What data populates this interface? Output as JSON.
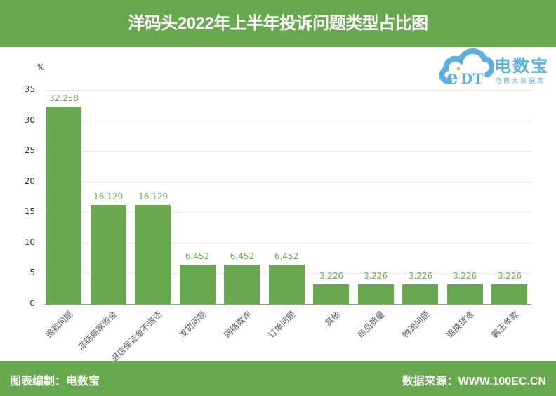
{
  "header": {
    "title": "洋码头2022年上半年投诉问题类型占比图"
  },
  "logo": {
    "badge": "eDT",
    "name": "电数宝",
    "subtitle": "电商大数据库"
  },
  "footer": {
    "left": "图表编制：电数宝",
    "right": "数据来源：WWW.100EC.CN"
  },
  "colors": {
    "bar": "#68a84f",
    "header": "#68a84f",
    "logo": "#5aaee0"
  },
  "chart_data": {
    "type": "bar",
    "title": "洋码头2022年上半年投诉问题类型占比图",
    "xlabel": "",
    "ylabel": "%",
    "ylim": [
      0,
      35
    ],
    "yticks": [
      0,
      5,
      10,
      15,
      20,
      25,
      30,
      35
    ],
    "grid": true,
    "legend": null,
    "categories": [
      "退款问题",
      "冻结商家资金",
      "退店保证金不退还",
      "发货问题",
      "网络欺诈",
      "订单问题",
      "其他",
      "商品质量",
      "物流问题",
      "退换货难",
      "霸王条款"
    ],
    "values": [
      32.258,
      16.129,
      16.129,
      6.452,
      6.452,
      6.452,
      3.226,
      3.226,
      3.226,
      3.226,
      3.226
    ],
    "value_labels": [
      "32.258",
      "16.129",
      "16.129",
      "6.452",
      "6.452",
      "6.452",
      "3.226",
      "3.226",
      "3.226",
      "3.226",
      "3.226"
    ]
  }
}
